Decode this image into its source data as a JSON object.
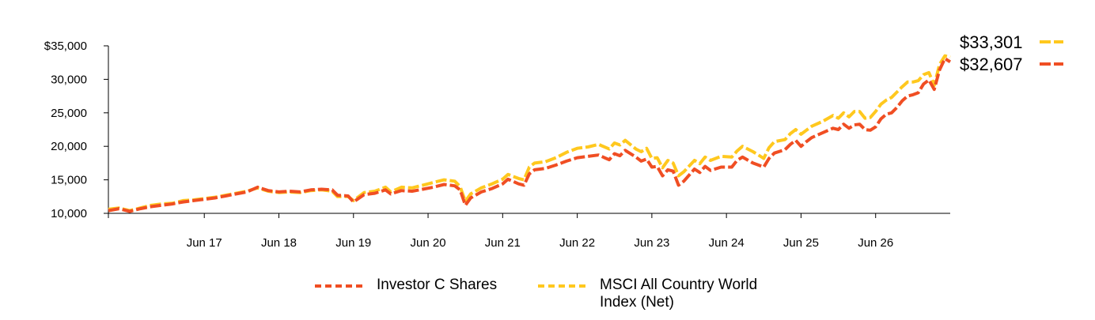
{
  "chart_data": {
    "type": "line",
    "x_tick_labels": [
      "Jun 17",
      "Jun 18",
      "Jun 19",
      "Jun 20",
      "Jun 21",
      "Jun 22",
      "Jun 23",
      "Jun 24",
      "Jun 25",
      "Jun 26"
    ],
    "y_tick_labels": [
      "$35,000",
      "30,000",
      "25,000",
      "20,000",
      "15,000",
      "10,000"
    ],
    "ylim": [
      10000,
      35000
    ],
    "grid": false,
    "legend_position": "bottom",
    "series": [
      {
        "name": "Investor C Shares",
        "color": "#f04e23",
        "end_label": "$32,607",
        "points": [
          [
            0,
            10400
          ],
          [
            2,
            10700
          ],
          [
            4,
            10300
          ],
          [
            6,
            10700
          ],
          [
            8,
            11000
          ],
          [
            10,
            11200
          ],
          [
            12,
            11400
          ],
          [
            14,
            11700
          ],
          [
            16,
            11900
          ],
          [
            18,
            12100
          ],
          [
            20,
            12300
          ],
          [
            22,
            12600
          ],
          [
            24,
            12900
          ],
          [
            26,
            13200
          ],
          [
            28,
            13900
          ],
          [
            30,
            13400
          ],
          [
            32,
            13200
          ],
          [
            34,
            13300
          ],
          [
            36,
            13200
          ],
          [
            38,
            13500
          ],
          [
            40,
            13600
          ],
          [
            42,
            13500
          ],
          [
            43,
            12700
          ],
          [
            45,
            12600
          ],
          [
            46,
            11700
          ],
          [
            48,
            12800
          ],
          [
            50,
            13000
          ],
          [
            52,
            13500
          ],
          [
            53,
            12900
          ],
          [
            55,
            13400
          ],
          [
            57,
            13300
          ],
          [
            59,
            13600
          ],
          [
            61,
            13900
          ],
          [
            63,
            14300
          ],
          [
            65,
            14100
          ],
          [
            66,
            13500
          ],
          [
            67,
            11200
          ],
          [
            68,
            12300
          ],
          [
            70,
            13200
          ],
          [
            72,
            13700
          ],
          [
            74,
            14400
          ],
          [
            75,
            15100
          ],
          [
            77,
            14400
          ],
          [
            78,
            14200
          ],
          [
            79,
            15900
          ],
          [
            80,
            16500
          ],
          [
            82,
            16700
          ],
          [
            84,
            17200
          ],
          [
            86,
            17800
          ],
          [
            88,
            18300
          ],
          [
            90,
            18500
          ],
          [
            92,
            18700
          ],
          [
            94,
            18000
          ],
          [
            95,
            18900
          ],
          [
            96,
            18600
          ],
          [
            97,
            19400
          ],
          [
            99,
            18400
          ],
          [
            100,
            17800
          ],
          [
            101,
            18100
          ],
          [
            102,
            16900
          ],
          [
            103,
            17000
          ],
          [
            104,
            15600
          ],
          [
            105,
            16500
          ],
          [
            106,
            16300
          ],
          [
            107,
            14200
          ],
          [
            108,
            14800
          ],
          [
            110,
            16600
          ],
          [
            111,
            16100
          ],
          [
            112,
            17000
          ],
          [
            113,
            16400
          ],
          [
            115,
            16900
          ],
          [
            117,
            16900
          ],
          [
            118,
            17900
          ],
          [
            119,
            18400
          ],
          [
            121,
            17500
          ],
          [
            122,
            17200
          ],
          [
            123,
            16900
          ],
          [
            124,
            18200
          ],
          [
            125,
            19000
          ],
          [
            127,
            19500
          ],
          [
            128,
            20300
          ],
          [
            129,
            20900
          ],
          [
            130,
            20000
          ],
          [
            131,
            20700
          ],
          [
            132,
            21300
          ],
          [
            134,
            22000
          ],
          [
            136,
            22700
          ],
          [
            137,
            22500
          ],
          [
            138,
            23300
          ],
          [
            139,
            22700
          ],
          [
            140,
            23200
          ],
          [
            141,
            23300
          ],
          [
            142,
            22500
          ],
          [
            143,
            22400
          ],
          [
            144,
            22900
          ],
          [
            145,
            24100
          ],
          [
            146,
            24800
          ],
          [
            147,
            25000
          ],
          [
            148,
            25800
          ],
          [
            149,
            26800
          ],
          [
            150,
            27500
          ],
          [
            151,
            27700
          ],
          [
            152,
            28000
          ],
          [
            153,
            29300
          ],
          [
            154,
            29900
          ],
          [
            155,
            28500
          ],
          [
            156,
            31400
          ],
          [
            157,
            33100
          ],
          [
            158,
            32607
          ]
        ]
      },
      {
        "name": "MSCI All Country World Index (Net)",
        "color": "#ffc81e",
        "end_label": "$33,301",
        "points": [
          [
            0,
            10600
          ],
          [
            2,
            10800
          ],
          [
            4,
            10400
          ],
          [
            6,
            10800
          ],
          [
            8,
            11200
          ],
          [
            10,
            11400
          ],
          [
            12,
            11500
          ],
          [
            14,
            11900
          ],
          [
            16,
            12000
          ],
          [
            18,
            12200
          ],
          [
            20,
            12400
          ],
          [
            22,
            12700
          ],
          [
            24,
            13000
          ],
          [
            26,
            13300
          ],
          [
            28,
            13800
          ],
          [
            30,
            13300
          ],
          [
            32,
            13100
          ],
          [
            34,
            13200
          ],
          [
            36,
            13100
          ],
          [
            38,
            13400
          ],
          [
            40,
            13500
          ],
          [
            42,
            13300
          ],
          [
            43,
            12500
          ],
          [
            45,
            12500
          ],
          [
            46,
            11900
          ],
          [
            48,
            13100
          ],
          [
            50,
            13300
          ],
          [
            52,
            13900
          ],
          [
            53,
            13200
          ],
          [
            55,
            13900
          ],
          [
            57,
            13800
          ],
          [
            59,
            14200
          ],
          [
            61,
            14600
          ],
          [
            63,
            15000
          ],
          [
            65,
            14800
          ],
          [
            66,
            14000
          ],
          [
            67,
            11800
          ],
          [
            68,
            12900
          ],
          [
            70,
            13800
          ],
          [
            72,
            14400
          ],
          [
            74,
            15100
          ],
          [
            75,
            15800
          ],
          [
            77,
            15200
          ],
          [
            78,
            15000
          ],
          [
            79,
            16900
          ],
          [
            80,
            17500
          ],
          [
            82,
            17700
          ],
          [
            84,
            18300
          ],
          [
            86,
            19100
          ],
          [
            88,
            19700
          ],
          [
            90,
            19900
          ],
          [
            92,
            20300
          ],
          [
            94,
            19600
          ],
          [
            95,
            20500
          ],
          [
            96,
            20200
          ],
          [
            97,
            20900
          ],
          [
            99,
            19600
          ],
          [
            100,
            19200
          ],
          [
            101,
            19700
          ],
          [
            102,
            18200
          ],
          [
            103,
            18300
          ],
          [
            104,
            16800
          ],
          [
            105,
            17900
          ],
          [
            106,
            17500
          ],
          [
            107,
            15600
          ],
          [
            108,
            16200
          ],
          [
            110,
            17900
          ],
          [
            111,
            17400
          ],
          [
            112,
            18400
          ],
          [
            113,
            17900
          ],
          [
            115,
            18500
          ],
          [
            117,
            18400
          ],
          [
            118,
            19300
          ],
          [
            119,
            20000
          ],
          [
            121,
            19200
          ],
          [
            122,
            18700
          ],
          [
            123,
            18200
          ],
          [
            124,
            19800
          ],
          [
            125,
            20700
          ],
          [
            127,
            21000
          ],
          [
            128,
            21900
          ],
          [
            129,
            22500
          ],
          [
            130,
            21800
          ],
          [
            131,
            22400
          ],
          [
            132,
            23000
          ],
          [
            134,
            23700
          ],
          [
            136,
            24600
          ],
          [
            137,
            24200
          ],
          [
            138,
            25000
          ],
          [
            139,
            24400
          ],
          [
            140,
            25200
          ],
          [
            141,
            25200
          ],
          [
            142,
            24200
          ],
          [
            143,
            24300
          ],
          [
            144,
            25200
          ],
          [
            145,
            26300
          ],
          [
            146,
            26900
          ],
          [
            147,
            27300
          ],
          [
            148,
            28100
          ],
          [
            149,
            28900
          ],
          [
            150,
            29600
          ],
          [
            151,
            29600
          ],
          [
            152,
            29800
          ],
          [
            153,
            30700
          ],
          [
            154,
            31000
          ],
          [
            155,
            29100
          ],
          [
            156,
            32200
          ],
          [
            157,
            33500
          ],
          [
            158,
            33301
          ]
        ]
      }
    ]
  }
}
